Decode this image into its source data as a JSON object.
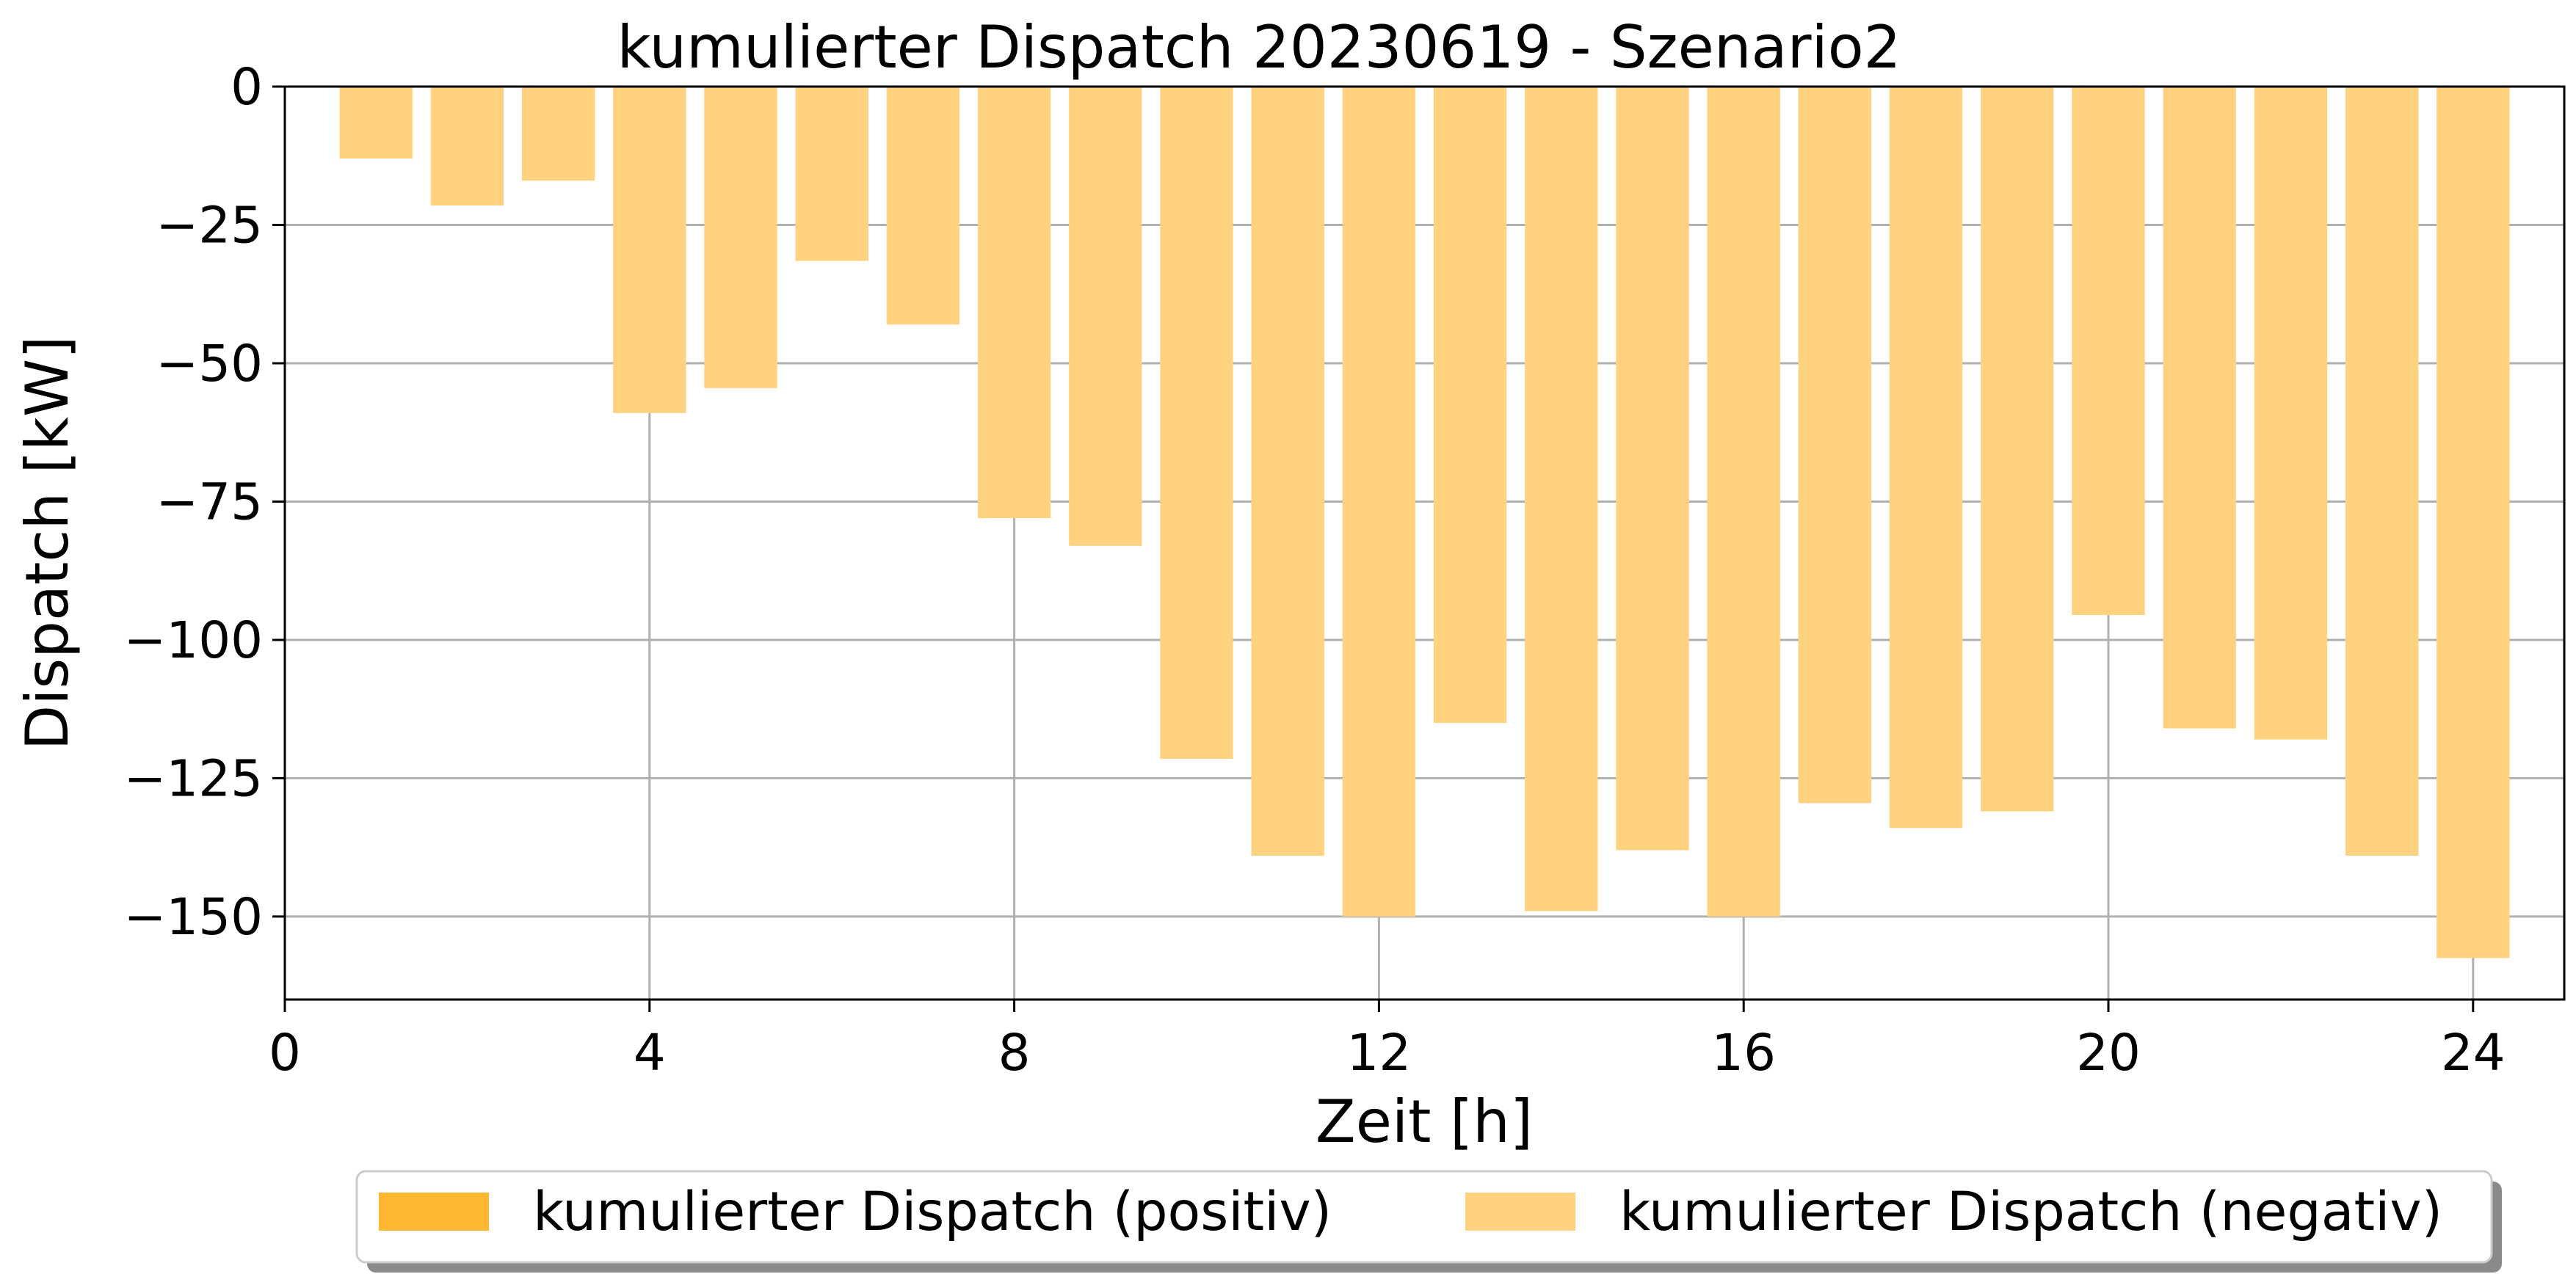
{
  "chart_data": {
    "type": "bar",
    "title": "kumulierter Dispatch 20230619 - Szenario2",
    "xlabel": "Zeit [h]",
    "ylabel": "Dispatch [kW]",
    "xlim": [
      0,
      25
    ],
    "ylim": [
      -165,
      0
    ],
    "x_ticks": [
      0,
      4,
      8,
      12,
      16,
      20,
      24
    ],
    "x_tick_labels": [
      "0",
      "4",
      "8",
      "12",
      "16",
      "20",
      "24"
    ],
    "y_ticks": [
      0,
      -25,
      -50,
      -75,
      -100,
      -125,
      -150
    ],
    "y_tick_labels": [
      "0",
      "−25",
      "−50",
      "−75",
      "−100",
      "−125",
      "−150"
    ],
    "grid": true,
    "bar_width": 0.8,
    "legend_position": "bottom-center",
    "x": [
      1,
      2,
      3,
      4,
      5,
      6,
      7,
      8,
      9,
      10,
      11,
      12,
      13,
      14,
      15,
      16,
      17,
      18,
      19,
      20,
      21,
      22,
      23,
      24
    ],
    "series": [
      {
        "name": "kumulierter Dispatch (positiv)",
        "color": "#ffb732",
        "values": [
          0,
          0,
          0,
          0,
          0,
          0,
          0,
          0,
          0,
          0,
          0,
          0,
          0,
          0,
          0,
          0,
          0,
          0,
          0,
          0,
          0,
          0,
          0,
          0
        ]
      },
      {
        "name": "kumulierter Dispatch (negativ)",
        "color": "#ffd280",
        "values": [
          -13,
          -21.5,
          -17,
          -59,
          -54.5,
          -31.5,
          -43,
          -78,
          -83,
          -121.5,
          -139,
          -150,
          -115,
          -149,
          -138,
          -150,
          -129.5,
          -134,
          -131,
          -95.5,
          -116,
          -118,
          -139,
          -157.5
        ]
      }
    ]
  }
}
